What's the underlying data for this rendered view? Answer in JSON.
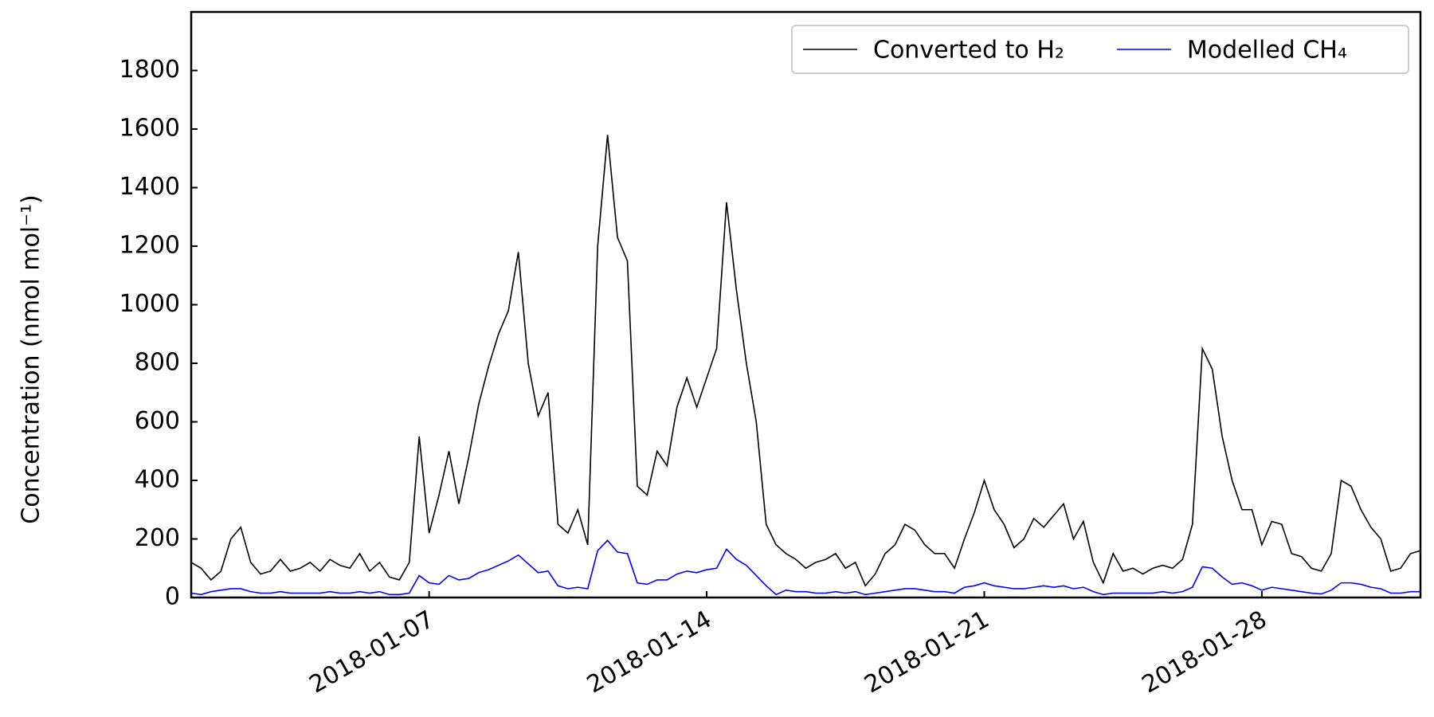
{
  "chart_data": {
    "type": "line",
    "ylabel": "Concentration (nmol mol⁻¹)",
    "xlim": [
      "2018-01-01",
      "2018-02-01"
    ],
    "xticks": [
      "2018-01-07",
      "2018-01-14",
      "2018-01-21",
      "2018-01-28"
    ],
    "ylim": [
      0,
      2000
    ],
    "yticks": [
      0,
      200,
      400,
      600,
      800,
      1000,
      1200,
      1400,
      1600,
      1800
    ],
    "grid": false,
    "legend": "upper right",
    "x": [
      "2018-01-01T00:00",
      "2018-01-01T06:00",
      "2018-01-01T12:00",
      "2018-01-01T18:00",
      "2018-01-02T00:00",
      "2018-01-02T06:00",
      "2018-01-02T12:00",
      "2018-01-02T18:00",
      "2018-01-03T00:00",
      "2018-01-03T06:00",
      "2018-01-03T12:00",
      "2018-01-03T18:00",
      "2018-01-04T00:00",
      "2018-01-04T06:00",
      "2018-01-04T12:00",
      "2018-01-04T18:00",
      "2018-01-05T00:00",
      "2018-01-05T06:00",
      "2018-01-05T12:00",
      "2018-01-05T18:00",
      "2018-01-06T00:00",
      "2018-01-06T06:00",
      "2018-01-06T12:00",
      "2018-01-06T18:00",
      "2018-01-07T00:00",
      "2018-01-07T06:00",
      "2018-01-07T12:00",
      "2018-01-07T18:00",
      "2018-01-08T00:00",
      "2018-01-08T06:00",
      "2018-01-08T12:00",
      "2018-01-08T18:00",
      "2018-01-09T00:00",
      "2018-01-09T06:00",
      "2018-01-09T12:00",
      "2018-01-09T18:00",
      "2018-01-10T00:00",
      "2018-01-10T06:00",
      "2018-01-10T12:00",
      "2018-01-10T18:00",
      "2018-01-11T00:00",
      "2018-01-11T06:00",
      "2018-01-11T12:00",
      "2018-01-11T18:00",
      "2018-01-12T00:00",
      "2018-01-12T06:00",
      "2018-01-12T12:00",
      "2018-01-12T18:00",
      "2018-01-13T00:00",
      "2018-01-13T06:00",
      "2018-01-13T12:00",
      "2018-01-13T18:00",
      "2018-01-14T00:00",
      "2018-01-14T06:00",
      "2018-01-14T12:00",
      "2018-01-14T18:00",
      "2018-01-15T00:00",
      "2018-01-15T06:00",
      "2018-01-15T12:00",
      "2018-01-15T18:00",
      "2018-01-16T00:00",
      "2018-01-16T06:00",
      "2018-01-16T12:00",
      "2018-01-16T18:00",
      "2018-01-17T00:00",
      "2018-01-17T06:00",
      "2018-01-17T12:00",
      "2018-01-17T18:00",
      "2018-01-18T00:00",
      "2018-01-18T06:00",
      "2018-01-18T12:00",
      "2018-01-18T18:00",
      "2018-01-19T00:00",
      "2018-01-19T06:00",
      "2018-01-19T12:00",
      "2018-01-19T18:00",
      "2018-01-20T00:00",
      "2018-01-20T06:00",
      "2018-01-20T12:00",
      "2018-01-20T18:00",
      "2018-01-21T00:00",
      "2018-01-21T06:00",
      "2018-01-21T12:00",
      "2018-01-21T18:00",
      "2018-01-22T00:00",
      "2018-01-22T06:00",
      "2018-01-22T12:00",
      "2018-01-22T18:00",
      "2018-01-23T00:00",
      "2018-01-23T06:00",
      "2018-01-23T12:00",
      "2018-01-23T18:00",
      "2018-01-24T00:00",
      "2018-01-24T06:00",
      "2018-01-24T12:00",
      "2018-01-24T18:00",
      "2018-01-25T00:00",
      "2018-01-25T06:00",
      "2018-01-25T12:00",
      "2018-01-25T18:00",
      "2018-01-26T00:00",
      "2018-01-26T06:00",
      "2018-01-26T12:00",
      "2018-01-26T18:00",
      "2018-01-27T00:00",
      "2018-01-27T06:00",
      "2018-01-27T12:00",
      "2018-01-27T18:00",
      "2018-01-28T00:00",
      "2018-01-28T06:00",
      "2018-01-28T12:00",
      "2018-01-28T18:00",
      "2018-01-29T00:00",
      "2018-01-29T06:00",
      "2018-01-29T12:00",
      "2018-01-29T18:00",
      "2018-01-30T00:00",
      "2018-01-30T06:00",
      "2018-01-30T12:00",
      "2018-01-30T18:00",
      "2018-01-31T00:00",
      "2018-01-31T06:00",
      "2018-01-31T12:00",
      "2018-01-31T18:00",
      "2018-02-01T00:00"
    ],
    "series": [
      {
        "name": "Converted to H₂",
        "color": "#000000",
        "values": [
          120,
          100,
          60,
          90,
          200,
          240,
          120,
          80,
          90,
          130,
          90,
          100,
          120,
          90,
          130,
          110,
          100,
          150,
          90,
          120,
          70,
          60,
          120,
          550,
          220,
          350,
          500,
          320,
          480,
          660,
          790,
          900,
          980,
          1180,
          800,
          620,
          700,
          250,
          220,
          300,
          180,
          1200,
          1580,
          1230,
          1150,
          380,
          350,
          500,
          450,
          650,
          750,
          650,
          750,
          850,
          1350,
          1050,
          800,
          600,
          250,
          180,
          150,
          130,
          100,
          120,
          130,
          150,
          100,
          120,
          40,
          80,
          150,
          180,
          250,
          230,
          180,
          150,
          150,
          100,
          200,
          290,
          400,
          300,
          250,
          170,
          200,
          270,
          240,
          280,
          320,
          200,
          260,
          120,
          50,
          150,
          90,
          100,
          80,
          100,
          110,
          100,
          130,
          250,
          850,
          780,
          550,
          400,
          300,
          300,
          180,
          260,
          250,
          150,
          140,
          100,
          90,
          150,
          400,
          380,
          300,
          240,
          200,
          90,
          100,
          150,
          160
        ]
      },
      {
        "name": "Modelled CH₄",
        "color": "#0000ff",
        "values": [
          15,
          10,
          20,
          25,
          30,
          30,
          20,
          15,
          15,
          20,
          15,
          15,
          15,
          15,
          20,
          15,
          15,
          20,
          15,
          20,
          10,
          10,
          15,
          75,
          50,
          45,
          75,
          60,
          65,
          85,
          95,
          110,
          125,
          145,
          115,
          85,
          90,
          40,
          30,
          35,
          30,
          160,
          195,
          155,
          150,
          50,
          45,
          60,
          60,
          80,
          90,
          85,
          95,
          100,
          165,
          130,
          110,
          75,
          40,
          10,
          25,
          20,
          20,
          15,
          15,
          20,
          15,
          20,
          10,
          15,
          20,
          25,
          30,
          30,
          25,
          20,
          20,
          15,
          35,
          40,
          50,
          40,
          35,
          30,
          30,
          35,
          40,
          35,
          40,
          30,
          35,
          20,
          10,
          15,
          15,
          15,
          15,
          15,
          20,
          15,
          20,
          35,
          105,
          100,
          70,
          45,
          50,
          40,
          25,
          35,
          30,
          25,
          20,
          15,
          12,
          25,
          50,
          50,
          45,
          35,
          30,
          15,
          15,
          20,
          20
        ]
      }
    ]
  }
}
